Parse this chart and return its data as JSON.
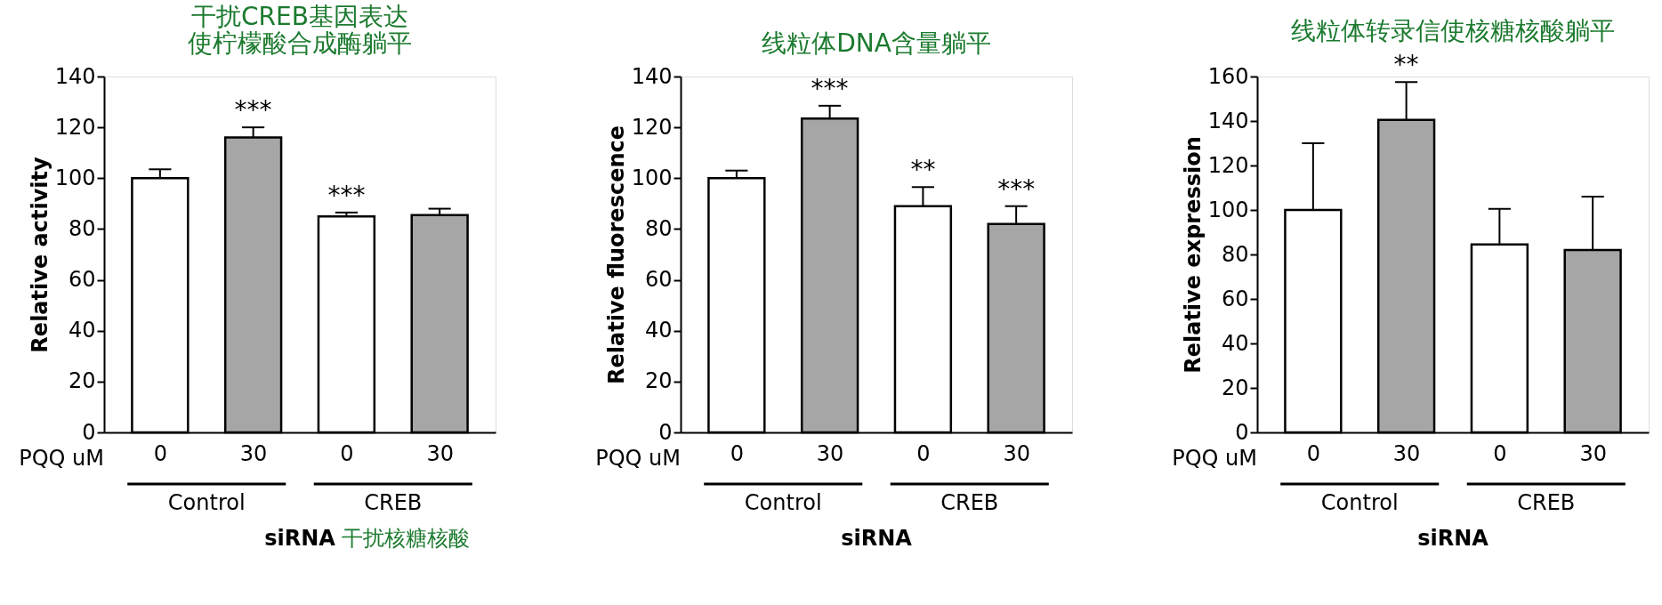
{
  "chart_data": [
    {
      "type": "bar",
      "title": [
        "干扰CREB基因表达",
        "使柠檬酸合成酶躺平"
      ],
      "ylabel": "Relative activity",
      "categories": [
        "0",
        "30",
        "0",
        "30"
      ],
      "values": [
        100,
        116,
        85,
        85.5
      ],
      "errors": [
        3.5,
        4,
        1.5,
        2.5
      ],
      "colors": [
        "#ffffff",
        "#a6a6a6",
        "#ffffff",
        "#a6a6a6"
      ],
      "value_labels": [
        null,
        "***",
        "***",
        null
      ],
      "ylim": [
        0,
        140
      ],
      "yticks": [
        0,
        20,
        40,
        60,
        80,
        100,
        120,
        140
      ],
      "grid": false,
      "annotations": [
        "PQQ uM",
        "Control",
        "CREB",
        "siRNA",
        "干扰核糖核酸"
      ]
    },
    {
      "type": "bar",
      "title": "线粒体DNA含量躺平",
      "ylabel": "Relative fluorescence",
      "categories": [
        "0",
        "30",
        "0",
        "30"
      ],
      "values": [
        100,
        123.5,
        89,
        82
      ],
      "errors": [
        3,
        5,
        7.5,
        7
      ],
      "colors": [
        "#ffffff",
        "#a6a6a6",
        "#ffffff",
        "#a6a6a6"
      ],
      "value_labels": [
        null,
        "***",
        "**",
        "***"
      ],
      "ylim": [
        0,
        140
      ],
      "yticks": [
        0,
        20,
        40,
        60,
        80,
        100,
        120,
        140
      ],
      "grid": false,
      "annotations": [
        "PQQ uM",
        "Control",
        "CREB",
        "siRNA"
      ]
    },
    {
      "type": "bar",
      "title": "线粒体转录信使核糖核酸躺平",
      "ylabel": "Relative expression",
      "categories": [
        "0",
        "30",
        "0",
        "30"
      ],
      "values": [
        100,
        140.5,
        84.5,
        82
      ],
      "errors": [
        30,
        17,
        16,
        24
      ],
      "colors": [
        "#ffffff",
        "#a6a6a6",
        "#ffffff",
        "#a6a6a6"
      ],
      "value_labels": [
        null,
        "**",
        null,
        null
      ],
      "ylim": [
        0,
        160
      ],
      "yticks": [
        0,
        20,
        40,
        60,
        80,
        100,
        120,
        140,
        160
      ],
      "grid": false,
      "annotations": [
        "PQQ uM",
        "Control",
        "CREB",
        "siRNA"
      ]
    }
  ]
}
